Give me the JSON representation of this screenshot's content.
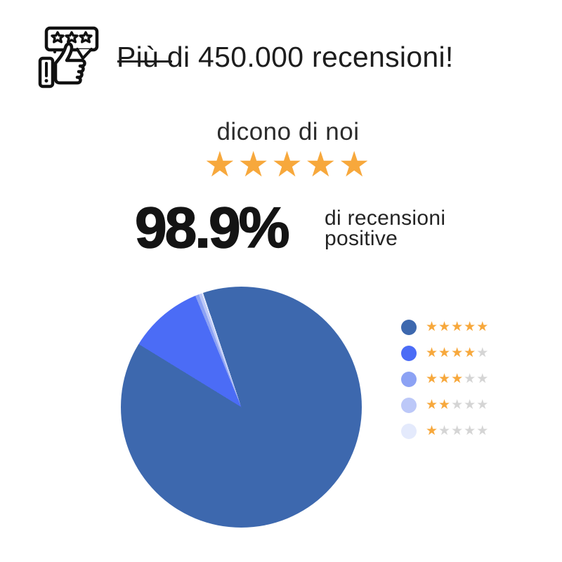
{
  "header": {
    "title": "Più di 450.000 recensioni!",
    "icon": "review-speech-bubble-thumbs-up-icon"
  },
  "tagline": {
    "text": "dicono di noi",
    "stars": 5,
    "star_color": "#F7A83C"
  },
  "stat": {
    "value": "98.9%",
    "label_line1": "di recensioni",
    "label_line2": "positive"
  },
  "chart_data": {
    "type": "pie",
    "values_are_percent": true,
    "start_angle_deg": 341.5,
    "legend_position": "right",
    "slices": [
      {
        "stars": 5,
        "value": 88.9,
        "color": "#3D68AE"
      },
      {
        "stars": 4,
        "value": 10.0,
        "color": "#4B6CF6"
      },
      {
        "stars": 3,
        "value": 0.5,
        "color": "#8CA2F4"
      },
      {
        "stars": 2,
        "value": 0.4,
        "color": "#BCC8F8"
      },
      {
        "stars": 1,
        "value": 0.2,
        "color": "#E4EAFC"
      }
    ]
  },
  "legend": {
    "rows": [
      {
        "stars_filled": 5
      },
      {
        "stars_filled": 4
      },
      {
        "stars_filled": 3
      },
      {
        "stars_filled": 2
      },
      {
        "stars_filled": 1
      }
    ],
    "filled_star_color": "#F7A83C",
    "empty_star_color": "#D5D5D5"
  }
}
